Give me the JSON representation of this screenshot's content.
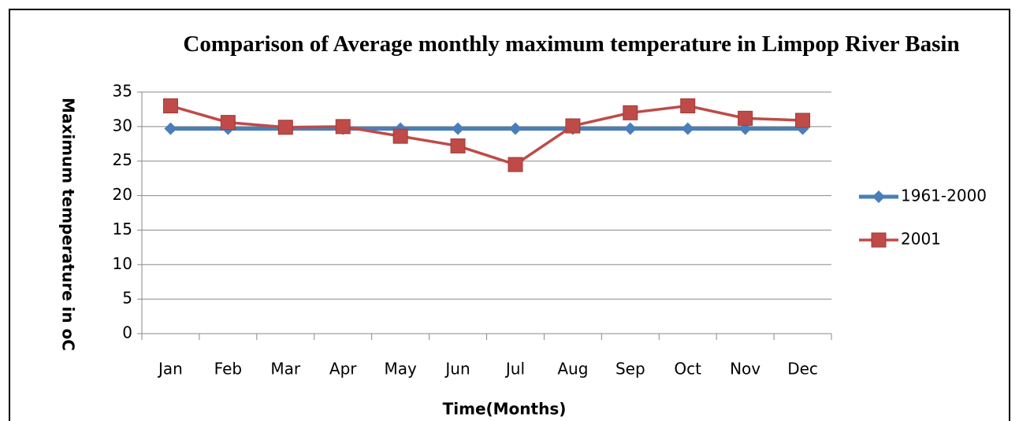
{
  "chart_data": {
    "type": "line",
    "title": "Comparison of Average monthly maximum temperature in Limpop River Basin",
    "x_label": "Time(Months)",
    "y_label": "Maximum temperature in oC",
    "categories": [
      "Jan",
      "Feb",
      "Mar",
      "Apr",
      "May",
      "Jun",
      "Jul",
      "Aug",
      "Sep",
      "Oct",
      "Nov",
      "Dec"
    ],
    "series": [
      {
        "name": "1961-2000",
        "color": "#4a7ebb",
        "marker": "diamond",
        "values": [
          29.7,
          29.7,
          29.7,
          29.7,
          29.7,
          29.7,
          29.7,
          29.7,
          29.7,
          29.7,
          29.7,
          29.7
        ]
      },
      {
        "name": "2001",
        "color": "#be4b48",
        "marker": "square",
        "values": [
          33,
          30.6,
          29.9,
          30,
          28.6,
          27.2,
          24.5,
          30.1,
          32,
          33,
          31.2,
          30.9
        ]
      }
    ],
    "ylim": [
      0,
      35
    ],
    "yticks": [
      0,
      5,
      10,
      15,
      20,
      25,
      30,
      35
    ],
    "grid": true,
    "legend": "right"
  }
}
